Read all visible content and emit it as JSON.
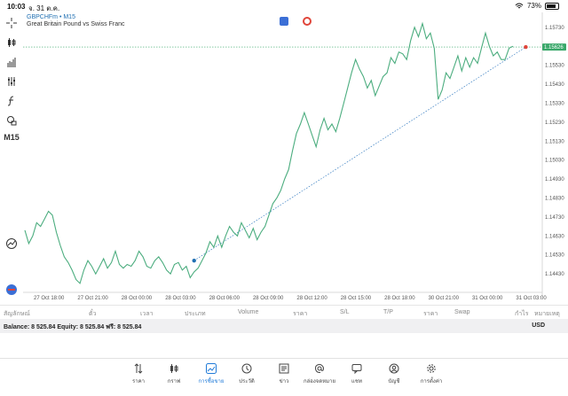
{
  "status": {
    "time": "10:03",
    "date": "จ. 31 ต.ค.",
    "battery": "73%"
  },
  "chart": {
    "symbol": "GBPCHFm • M15",
    "description": "Great Britain Pound vs Swiss Franc",
    "timeframe": "M15",
    "current_price_label": "1.15626",
    "line_color": "#4cad7f",
    "current_line_color": "#3aa86a",
    "price_ticks": [
      "1.15730",
      "1.15630",
      "1.15530",
      "1.15430",
      "1.15330",
      "1.15230",
      "1.15130",
      "1.15030",
      "1.14930",
      "1.14830",
      "1.14730",
      "1.14630",
      "1.14530",
      "1.14430"
    ],
    "time_ticks": [
      "27 Oct 18:00",
      "27 Oct 21:00",
      "28 Oct 00:00",
      "28 Oct 03:00",
      "28 Oct 06:00",
      "28 Oct 09:00",
      "28 Oct 12:00",
      "28 Oct 15:00",
      "28 Oct 18:00",
      "30 Oct 21:00",
      "31 Oct 00:00",
      "31 Oct 03:00"
    ]
  },
  "chart_data": {
    "type": "line",
    "ylim": [
      1.1437,
      1.1579
    ],
    "series": [
      {
        "values": [
          1.1466,
          1.1459,
          1.1463,
          1.147,
          1.1468,
          1.1472,
          1.1476,
          1.1474,
          1.1465,
          1.1458,
          1.1452,
          1.1449,
          1.1445,
          1.144,
          1.1438,
          1.1445,
          1.145,
          1.1447,
          1.1443,
          1.1447,
          1.1451,
          1.1446,
          1.1449,
          1.1455,
          1.1448,
          1.1446,
          1.1448,
          1.1447,
          1.145,
          1.1455,
          1.1452,
          1.1447,
          1.1446,
          1.145,
          1.1452,
          1.1449,
          1.1445,
          1.1443,
          1.1448,
          1.1449,
          1.1445,
          1.1447,
          1.1441,
          1.1444,
          1.1446,
          1.145,
          1.1454,
          1.146,
          1.1457,
          1.1463,
          1.1457,
          1.1463,
          1.1468,
          1.1465,
          1.1463,
          1.147,
          1.1466,
          1.1462,
          1.1467,
          1.1461,
          1.1465,
          1.1468,
          1.1474,
          1.148,
          1.1483,
          1.1487,
          1.1493,
          1.1498,
          1.1508,
          1.1517,
          1.1522,
          1.1528,
          1.1522,
          1.1516,
          1.151,
          1.1519,
          1.1525,
          1.1519,
          1.1522,
          1.1518,
          1.1525,
          1.1533,
          1.1541,
          1.1549,
          1.1556,
          1.1551,
          1.1547,
          1.1541,
          1.1545,
          1.1537,
          1.1542,
          1.1547,
          1.1549,
          1.1557,
          1.1554,
          1.156,
          1.1559,
          1.1556,
          1.1566,
          1.1573,
          1.1568,
          1.1575,
          1.1567,
          1.157,
          1.1562,
          1.1535,
          1.154,
          1.1549,
          1.1546,
          1.1552,
          1.1558,
          1.155,
          1.1557,
          1.1552,
          1.1557,
          1.1554,
          1.1562,
          1.157,
          1.1563,
          1.1558,
          1.156,
          1.1556,
          1.1556,
          1.1562,
          1.1563
        ]
      }
    ],
    "trendline": {
      "start": [
        43,
        1.145
      ],
      "end": [
        125,
        1.15626
      ]
    }
  },
  "columns": [
    "สัญลักษณ์",
    "ตั๋ว",
    "เวลา",
    "ประเภท",
    "Volume",
    "ราคา",
    "S/L",
    "T/P",
    "ราคา",
    "Swap",
    "กำไร",
    "หมายเหตุ"
  ],
  "balance": {
    "text": "Balance: 8 525.84 Equity: 8 525.84 ฟรี: 8 525.84",
    "currency": "USD"
  },
  "tabs": [
    {
      "label": "ราคา",
      "icon": "arrows-icon"
    },
    {
      "label": "กราฟ",
      "icon": "candles-icon"
    },
    {
      "label": "การซื้อขาย",
      "icon": "trade-icon"
    },
    {
      "label": "ประวัติ",
      "icon": "history-icon"
    },
    {
      "label": "ข่าว",
      "icon": "news-icon"
    },
    {
      "label": "กล่องจดหมาย",
      "icon": "mail-icon"
    },
    {
      "label": "แชท",
      "icon": "chat-icon"
    },
    {
      "label": "บัญชี",
      "icon": "account-icon"
    },
    {
      "label": "การตั้งค่า",
      "icon": "settings-icon"
    }
  ]
}
